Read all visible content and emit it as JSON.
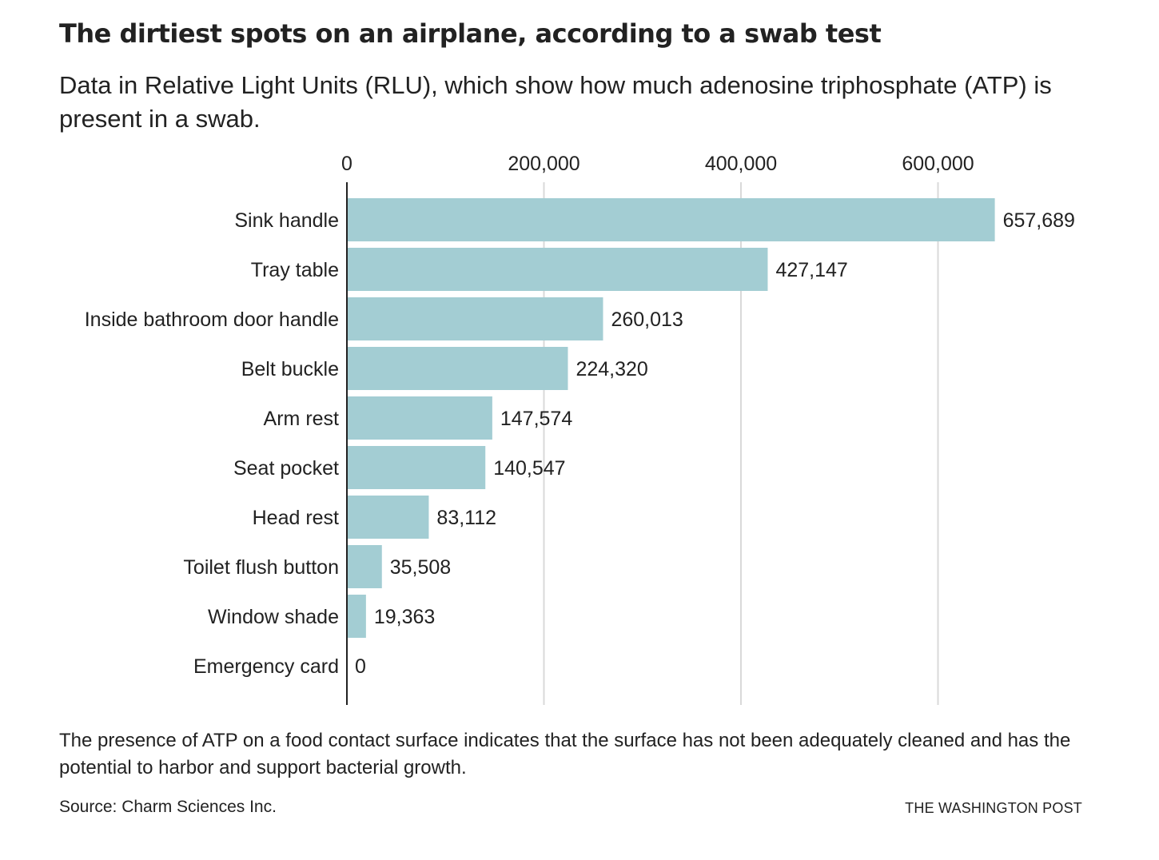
{
  "header": {
    "title": "The dirtiest spots on an airplane, according to a swab test",
    "subtitle": "Data in Relative Light Units (RLU), which show how much adenosine triphosphate (ATP) is present in a swab."
  },
  "footer": {
    "note": "The presence of ATP on a food contact surface indicates that the surface has not been adequately cleaned and has the potential to harbor and support bacterial growth.",
    "source": "Source: Charm Sciences Inc.",
    "credit": "THE WASHINGTON POST"
  },
  "colors": {
    "bar": "#a3cdd3",
    "grid": "#d9d9d9",
    "axis": "#222222",
    "text": "#222222"
  },
  "chart_data": {
    "type": "bar",
    "orientation": "horizontal",
    "categories": [
      "Sink handle",
      "Tray table",
      "Inside bathroom door handle",
      "Belt buckle",
      "Arm rest",
      "Seat pocket",
      "Head rest",
      "Toilet flush button",
      "Window shade",
      "Emergency card"
    ],
    "values": [
      657689,
      427147,
      260013,
      224320,
      147574,
      140547,
      83112,
      35508,
      19363,
      0
    ],
    "value_labels": [
      "657,689",
      "427,147",
      "260,013",
      "224,320",
      "147,574",
      "140,547",
      "83,112",
      "35,508",
      "19,363",
      "0"
    ],
    "x_ticks": [
      0,
      200000,
      400000,
      600000
    ],
    "x_tick_labels": [
      "0",
      "200,000",
      "400,000",
      "600,000"
    ],
    "xlim": [
      0,
      710000
    ],
    "axis_position": "top",
    "grid": true
  }
}
